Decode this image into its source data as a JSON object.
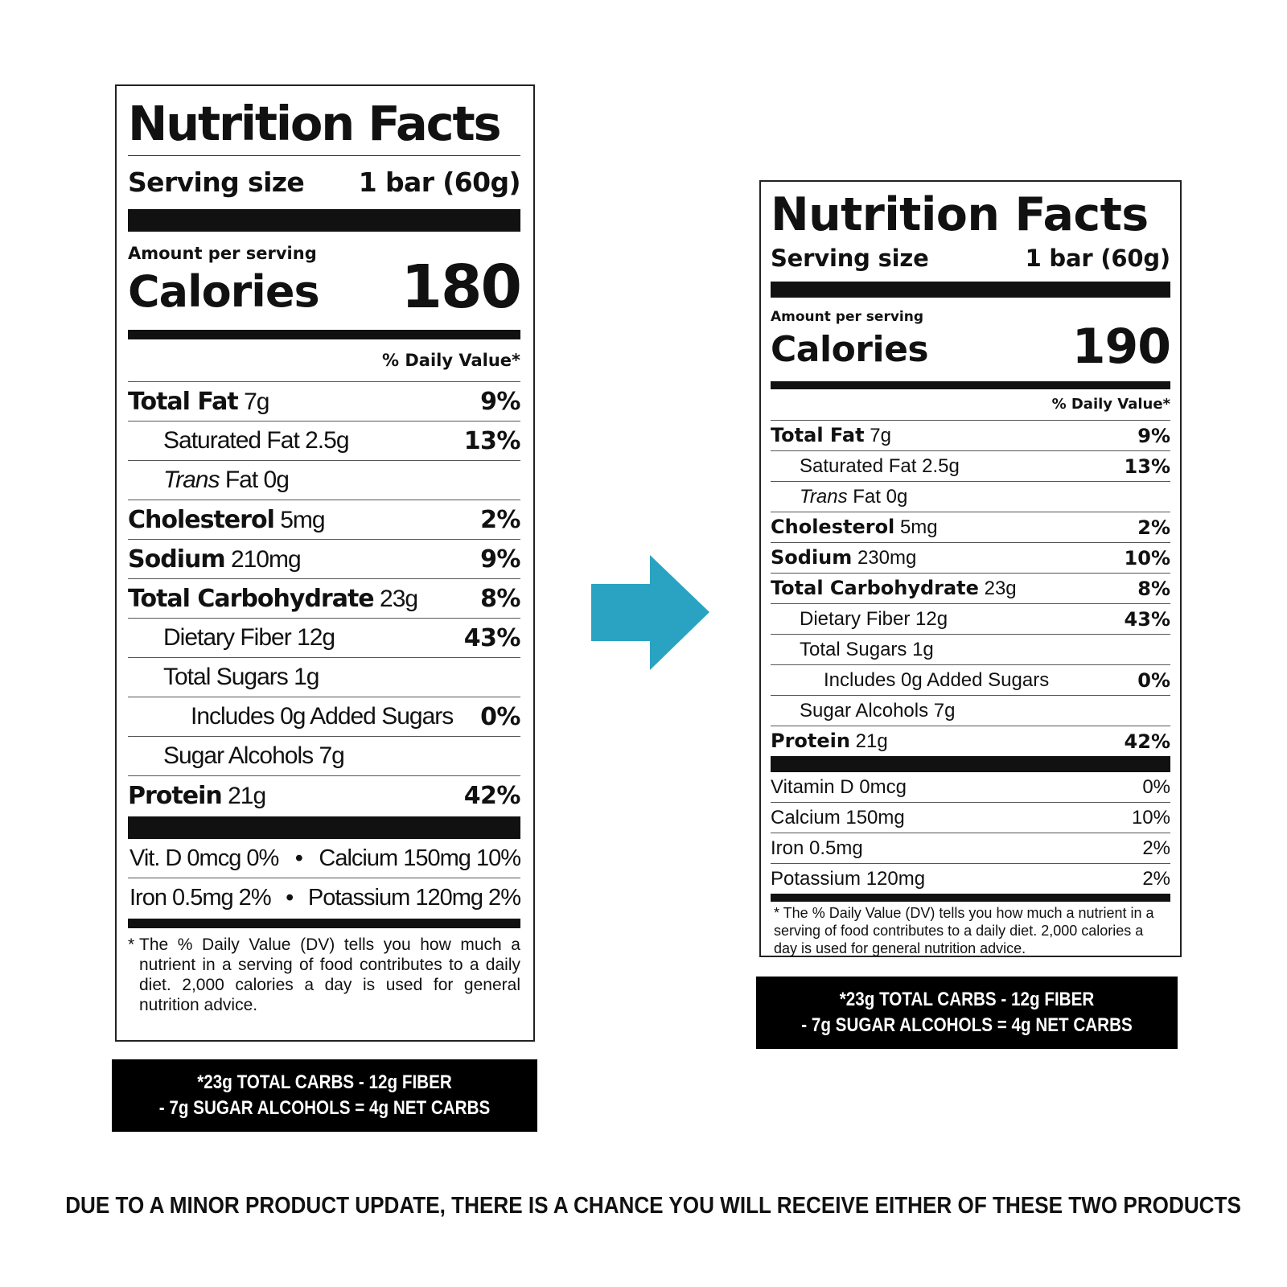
{
  "old_label": {
    "title": "Nutrition Facts",
    "serving_label": "Serving size",
    "serving_value": "1 bar (60g)",
    "amount_per_serving": "Amount per serving",
    "calories_label": "Calories",
    "calories_value": "180",
    "daily_value_header": "% Daily Value*",
    "nutrients": [
      {
        "name": "Total Fat",
        "amount": "7g",
        "dv": "9%"
      },
      {
        "name": "Saturated Fat",
        "amount": "2.5g",
        "dv": "13%"
      },
      {
        "name": "Trans",
        "name_suffix": "Fat",
        "amount": "0g",
        "dv": ""
      },
      {
        "name": "Cholesterol",
        "amount": "5mg",
        "dv": "2%"
      },
      {
        "name": "Sodium",
        "amount": "210mg",
        "dv": "9%"
      },
      {
        "name": "Total Carbohydrate",
        "amount": "23g",
        "dv": "8%"
      },
      {
        "name": "Dietary Fiber",
        "amount": "12g",
        "dv": "43%"
      },
      {
        "name": "Total Sugars",
        "amount": "1g",
        "dv": ""
      },
      {
        "name": "Includes 0g Added Sugars",
        "amount": "",
        "dv": "0%"
      },
      {
        "name": "Sugar Alcohols",
        "amount": "7g",
        "dv": ""
      },
      {
        "name": "Protein",
        "amount": "21g",
        "dv": "42%"
      }
    ],
    "vitamins": [
      {
        "left": "Vit. D 0mcg 0%",
        "sep": "•",
        "right": "Calcium 150mg 10%"
      },
      {
        "left": "Iron 0.5mg 2%",
        "sep": "•",
        "right": "Potassium 120mg 2%"
      }
    ],
    "footnote_mark": "*",
    "footnote": "The % Daily Value (DV) tells you how much a nutrient in a serving of food contributes to a daily diet. 2,000 calories a day is used for general nutrition advice."
  },
  "old_banner": {
    "line1": "*23g TOTAL CARBS - 12g FIBER",
    "line2": "- 7g SUGAR ALCOHOLS = 4g NET CARBS"
  },
  "arrow": {
    "icon": "right-arrow-icon",
    "color": "#2aa3c2"
  },
  "new_label": {
    "title": "Nutrition Facts",
    "serving_label": "Serving size",
    "serving_value": "1 bar (60g)",
    "amount_per_serving": "Amount per serving",
    "calories_label": "Calories",
    "calories_value": "190",
    "daily_value_header": "% Daily Value*",
    "nutrients": [
      {
        "name": "Total Fat",
        "amount": "7g",
        "dv": "9%"
      },
      {
        "name": "Saturated Fat",
        "amount": "2.5g",
        "dv": "13%"
      },
      {
        "name": "Trans",
        "name_suffix": "Fat",
        "amount": "0g",
        "dv": ""
      },
      {
        "name": "Cholesterol",
        "amount": "5mg",
        "dv": "2%"
      },
      {
        "name": "Sodium",
        "amount": "230mg",
        "dv": "10%"
      },
      {
        "name": "Total Carbohydrate",
        "amount": "23g",
        "dv": "8%"
      },
      {
        "name": "Dietary Fiber",
        "amount": "12g",
        "dv": "43%"
      },
      {
        "name": "Total Sugars",
        "amount": "1g",
        "dv": ""
      },
      {
        "name": "Includes 0g Added Sugars",
        "amount": "",
        "dv": "0%"
      },
      {
        "name": "Sugar Alcohols",
        "amount": "7g",
        "dv": ""
      },
      {
        "name": "Protein",
        "amount": "21g",
        "dv": "42%"
      }
    ],
    "vitamins": [
      {
        "name": "Vitamin D 0mcg",
        "dv": "0%"
      },
      {
        "name": "Calcium 150mg",
        "dv": "10%"
      },
      {
        "name": "Iron 0.5mg",
        "dv": "2%"
      },
      {
        "name": "Potassium 120mg",
        "dv": "2%"
      }
    ],
    "footnote": "* The % Daily Value (DV) tells you how much a nutrient in a serving of food contributes to a daily diet. 2,000 calories a day is used for general nutrition advice."
  },
  "new_banner": {
    "line1": "*23g TOTAL CARBS - 12g FIBER",
    "line2": "- 7g SUGAR ALCOHOLS = 4g NET CARBS"
  },
  "notice": "DUE TO A MINOR PRODUCT UPDATE, THERE IS A CHANCE YOU WILL RECEIVE EITHER OF THESE TWO PRODUCTS"
}
